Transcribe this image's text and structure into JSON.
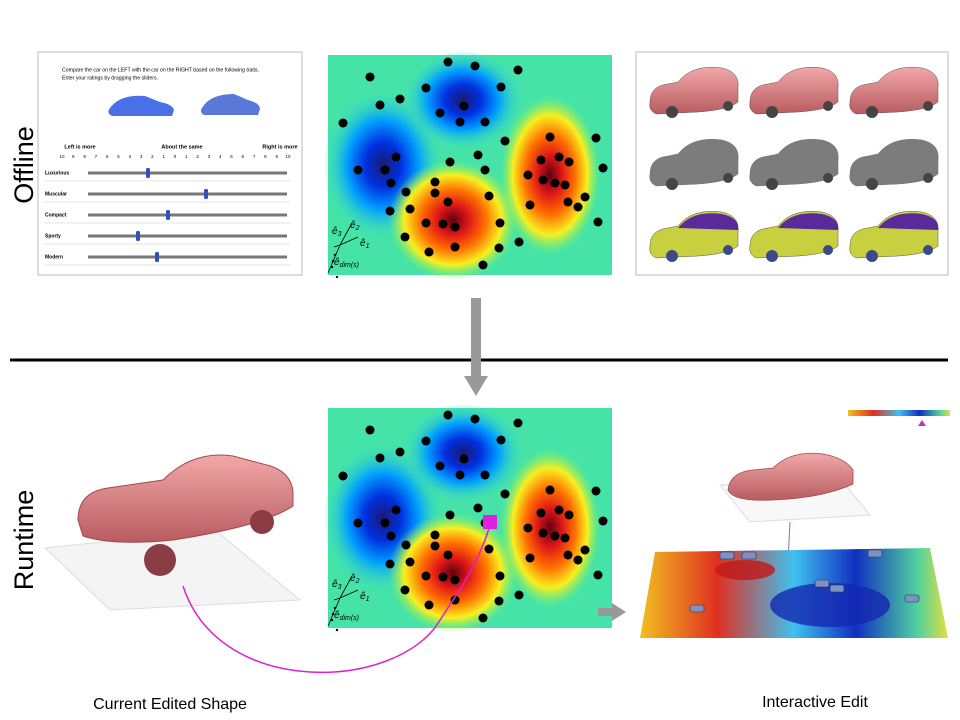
{
  "sections": {
    "offline": "Offline",
    "runtime": "Runtime"
  },
  "survey": {
    "instruction": [
      "Compare the car on the LEFT with the car on the RIGHT based on the following traits.",
      "Enter your ratings by dragging the sliders."
    ],
    "scale_headers": [
      "Left is more",
      "About the same",
      "Right is more"
    ],
    "scale_numbers": [
      "10",
      "9",
      "8",
      "7",
      "6",
      "5",
      "4",
      "3",
      "2",
      "1",
      "0",
      "1",
      "2",
      "3",
      "4",
      "5",
      "6",
      "7",
      "8",
      "9",
      "10"
    ],
    "traits": [
      "Luxurious",
      "Muscular",
      "Compact",
      "Sporty",
      "Modern"
    ]
  },
  "feature_space": {
    "axes": [
      {
        "base": "ê",
        "sub": "3"
      },
      {
        "base": "ê",
        "sub": "2"
      },
      {
        "base": "ê",
        "sub": "1"
      },
      {
        "base": "ê",
        "sub": "dim(s)"
      }
    ]
  },
  "captions": {
    "current": "Current Edited Shape",
    "interactive": "Interactive Edit"
  }
}
